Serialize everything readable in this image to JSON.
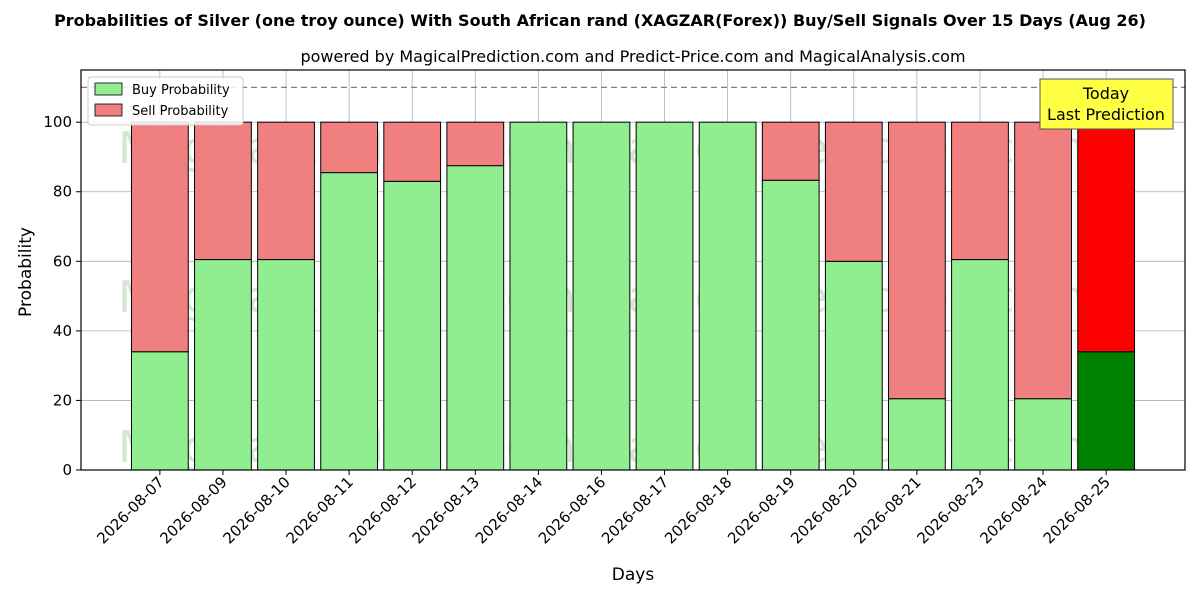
{
  "chart_data": {
    "type": "bar",
    "stacked": true,
    "title": "Probabilities of Silver (one troy ounce) With South African rand (XAGZAR(Forex)) Buy/Sell Signals Over 15 Days (Aug 26)",
    "subtitle": "powered by MagicalPrediction.com and Predict-Price.com and MagicalAnalysis.com",
    "xlabel": "Days",
    "ylabel": "Probability",
    "ylim": [
      0,
      115
    ],
    "yticks": [
      0,
      20,
      40,
      60,
      80,
      100
    ],
    "reference_line": 110,
    "grid": true,
    "legend_position": "top-left",
    "categories": [
      "2026-08-07",
      "2026-08-09",
      "2026-08-10",
      "2026-08-11",
      "2026-08-12",
      "2026-08-13",
      "2026-08-14",
      "2026-08-16",
      "2026-08-17",
      "2026-08-18",
      "2026-08-19",
      "2026-08-20",
      "2026-08-21",
      "2026-08-23",
      "2026-08-24",
      "2026-08-25"
    ],
    "series": [
      {
        "name": "Buy Probability",
        "color": "#90ee90",
        "values": [
          34,
          60.5,
          60.5,
          85.5,
          83,
          87.5,
          100,
          100,
          100,
          100,
          83.3,
          60,
          20.5,
          60.5,
          20.5,
          34
        ]
      },
      {
        "name": "Sell Probability",
        "color": "#f08080",
        "values": [
          66,
          39.5,
          39.5,
          14.5,
          17,
          12.5,
          0,
          0,
          0,
          0,
          16.7,
          40,
          79.5,
          39.5,
          79.5,
          66
        ]
      }
    ],
    "highlight": {
      "index": 15,
      "buy_color": "#008000",
      "sell_color": "#ff0000"
    },
    "annotation": {
      "lines": [
        "Today",
        "Last Prediction"
      ],
      "background": "#ffff44"
    },
    "watermarks": [
      "MagicalAnalysis.com",
      "MagicalPrediction.com"
    ]
  }
}
